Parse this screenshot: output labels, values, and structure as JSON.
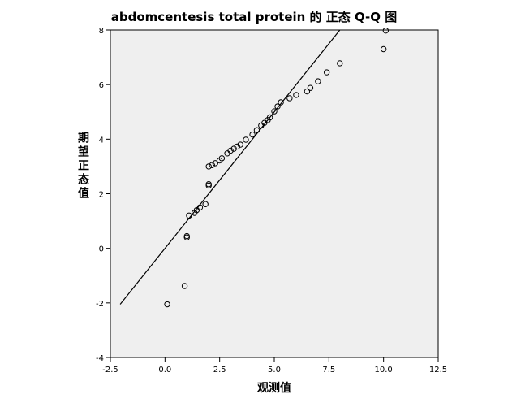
{
  "chart_data": {
    "type": "scatter",
    "title": "abdomcentesis total protein 的 正态 Q-Q 图",
    "xlabel": "观测值",
    "ylabel": "期望正态值",
    "xlim": [
      -2.5,
      12.5
    ],
    "ylim": [
      -4,
      8
    ],
    "xticks": [
      "-2.5",
      "0.0",
      "2.5",
      "5.0",
      "7.5",
      "10.0",
      "12.5"
    ],
    "yticks": [
      "-4",
      "-2",
      "0",
      "2",
      "4",
      "6",
      "8"
    ],
    "grid": false,
    "reference_line": {
      "x": [
        -2.05,
        8.0
      ],
      "y": [
        -2.05,
        8.0
      ]
    },
    "points": [
      {
        "x": 0.1,
        "y": -2.05
      },
      {
        "x": 0.9,
        "y": -1.38
      },
      {
        "x": 1.0,
        "y": 0.4
      },
      {
        "x": 1.0,
        "y": 0.45
      },
      {
        "x": 1.1,
        "y": 1.2
      },
      {
        "x": 1.35,
        "y": 1.3
      },
      {
        "x": 1.45,
        "y": 1.4
      },
      {
        "x": 1.6,
        "y": 1.5
      },
      {
        "x": 1.85,
        "y": 1.62
      },
      {
        "x": 2.0,
        "y": 2.3
      },
      {
        "x": 2.0,
        "y": 2.35
      },
      {
        "x": 2.0,
        "y": 3.0
      },
      {
        "x": 2.15,
        "y": 3.05
      },
      {
        "x": 2.3,
        "y": 3.12
      },
      {
        "x": 2.5,
        "y": 3.22
      },
      {
        "x": 2.6,
        "y": 3.3
      },
      {
        "x": 2.85,
        "y": 3.48
      },
      {
        "x": 3.0,
        "y": 3.58
      },
      {
        "x": 3.15,
        "y": 3.65
      },
      {
        "x": 3.3,
        "y": 3.73
      },
      {
        "x": 3.45,
        "y": 3.8
      },
      {
        "x": 3.7,
        "y": 3.98
      },
      {
        "x": 4.0,
        "y": 4.17
      },
      {
        "x": 4.2,
        "y": 4.33
      },
      {
        "x": 4.4,
        "y": 4.5
      },
      {
        "x": 4.55,
        "y": 4.6
      },
      {
        "x": 4.7,
        "y": 4.7
      },
      {
        "x": 4.8,
        "y": 4.8
      },
      {
        "x": 5.0,
        "y": 5.02
      },
      {
        "x": 5.15,
        "y": 5.2
      },
      {
        "x": 5.3,
        "y": 5.35
      },
      {
        "x": 5.7,
        "y": 5.5
      },
      {
        "x": 6.0,
        "y": 5.62
      },
      {
        "x": 6.5,
        "y": 5.75
      },
      {
        "x": 6.65,
        "y": 5.88
      },
      {
        "x": 7.0,
        "y": 6.12
      },
      {
        "x": 7.4,
        "y": 6.45
      },
      {
        "x": 8.0,
        "y": 6.78
      },
      {
        "x": 10.0,
        "y": 7.3
      },
      {
        "x": 10.1,
        "y": 7.98
      }
    ]
  }
}
